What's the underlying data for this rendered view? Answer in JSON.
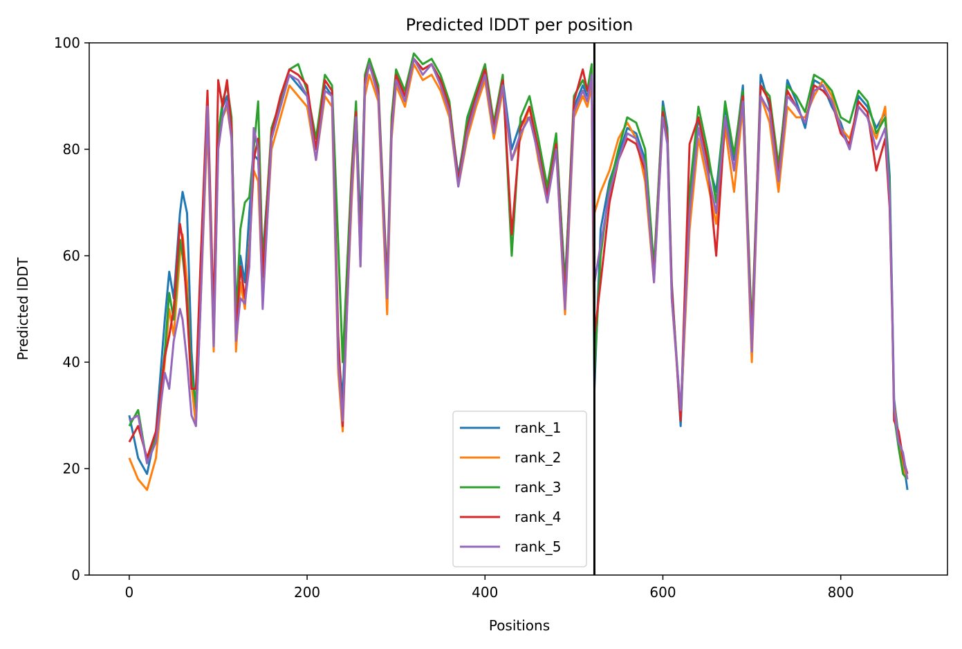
{
  "chart_data": {
    "type": "line",
    "title": "Predicted lDDT per position",
    "xlabel": "Positions",
    "ylabel": "Predicted lDDT",
    "xlim": [
      -45,
      920
    ],
    "ylim": [
      0,
      100
    ],
    "xticks": [
      0,
      200,
      400,
      600,
      800
    ],
    "yticks": [
      0,
      20,
      40,
      60,
      80,
      100
    ],
    "grid": false,
    "legend_position": "lower-center",
    "vline": {
      "x": 523,
      "color": "#000000"
    },
    "series": [
      {
        "name": "rank_1",
        "color": "#1f77b4",
        "x": [
          0,
          10,
          20,
          30,
          40,
          45,
          50,
          57,
          60,
          65,
          70,
          75,
          80,
          88,
          95,
          100,
          105,
          110,
          115,
          120,
          125,
          130,
          135,
          140,
          145,
          150,
          160,
          170,
          180,
          190,
          200,
          210,
          220,
          228,
          235,
          240,
          245,
          250,
          255,
          260,
          265,
          270,
          280,
          290,
          295,
          300,
          310,
          320,
          330,
          340,
          350,
          360,
          370,
          380,
          390,
          400,
          410,
          420,
          430,
          440,
          450,
          460,
          470,
          480,
          490,
          500,
          510,
          515,
          520,
          523,
          530,
          540,
          550,
          560,
          570,
          580,
          590,
          600,
          605,
          610,
          620,
          630,
          640,
          650,
          660,
          670,
          680,
          690,
          700,
          710,
          720,
          730,
          740,
          750,
          760,
          770,
          780,
          790,
          800,
          810,
          820,
          830,
          840,
          850,
          855,
          858,
          860,
          865,
          870,
          875
        ],
        "y": [
          30,
          22,
          19,
          27,
          48,
          57,
          52,
          68,
          72,
          68,
          42,
          30,
          55,
          88,
          45,
          82,
          88,
          90,
          85,
          50,
          60,
          55,
          68,
          79,
          78,
          60,
          82,
          88,
          94,
          92,
          90,
          80,
          92,
          90,
          42,
          33,
          55,
          75,
          88,
          65,
          93,
          96,
          91,
          53,
          85,
          94,
          90,
          97,
          95,
          96,
          93,
          88,
          75,
          85,
          90,
          95,
          84,
          93,
          80,
          85,
          86,
          80,
          72,
          82,
          55,
          88,
          92,
          90,
          93,
          35,
          65,
          74,
          79,
          84,
          83,
          78,
          57,
          89,
          84,
          55,
          28,
          70,
          86,
          78,
          72,
          88,
          78,
          92,
          43,
          94,
          88,
          76,
          93,
          89,
          84,
          93,
          92,
          88,
          85,
          80,
          90,
          88,
          84,
          87,
          75,
          50,
          33,
          26,
          22,
          16
        ]
      },
      {
        "name": "rank_2",
        "color": "#ff7f0e",
        "x": [
          0,
          10,
          20,
          30,
          40,
          45,
          50,
          57,
          60,
          65,
          70,
          75,
          80,
          88,
          95,
          100,
          105,
          110,
          115,
          120,
          125,
          130,
          135,
          140,
          145,
          150,
          160,
          170,
          180,
          190,
          200,
          210,
          220,
          228,
          235,
          240,
          245,
          250,
          255,
          260,
          265,
          270,
          280,
          290,
          295,
          300,
          310,
          320,
          330,
          340,
          350,
          360,
          370,
          380,
          390,
          400,
          410,
          420,
          430,
          440,
          450,
          460,
          470,
          480,
          490,
          500,
          510,
          515,
          520,
          523,
          530,
          540,
          550,
          560,
          570,
          580,
          590,
          600,
          605,
          610,
          620,
          630,
          640,
          650,
          660,
          670,
          680,
          690,
          700,
          710,
          720,
          730,
          740,
          750,
          760,
          770,
          780,
          790,
          800,
          810,
          820,
          830,
          840,
          850,
          855,
          858,
          860,
          865,
          870,
          875
        ],
        "y": [
          22,
          18,
          16,
          22,
          40,
          50,
          45,
          60,
          64,
          55,
          36,
          28,
          50,
          85,
          42,
          80,
          86,
          88,
          82,
          42,
          55,
          50,
          62,
          76,
          74,
          52,
          80,
          86,
          92,
          90,
          88,
          78,
          90,
          88,
          38,
          27,
          50,
          70,
          85,
          58,
          90,
          94,
          89,
          49,
          82,
          92,
          88,
          96,
          93,
          94,
          91,
          86,
          73,
          82,
          88,
          93,
          82,
          91,
          78,
          82,
          88,
          78,
          70,
          80,
          49,
          86,
          90,
          88,
          92,
          68,
          72,
          76,
          82,
          85,
          82,
          74,
          55,
          86,
          82,
          52,
          30,
          65,
          82,
          74,
          66,
          84,
          72,
          88,
          40,
          90,
          85,
          72,
          88,
          86,
          86,
          90,
          93,
          90,
          84,
          82,
          88,
          86,
          82,
          88,
          70,
          48,
          32,
          25,
          20,
          18
        ]
      },
      {
        "name": "rank_3",
        "color": "#2ca02c",
        "x": [
          0,
          10,
          20,
          30,
          40,
          45,
          50,
          57,
          60,
          65,
          70,
          75,
          80,
          88,
          95,
          100,
          105,
          110,
          115,
          120,
          125,
          130,
          135,
          140,
          145,
          150,
          160,
          170,
          180,
          190,
          200,
          210,
          220,
          228,
          235,
          240,
          245,
          250,
          255,
          260,
          265,
          270,
          280,
          290,
          295,
          300,
          310,
          320,
          330,
          340,
          350,
          360,
          370,
          380,
          390,
          400,
          410,
          420,
          430,
          440,
          450,
          460,
          470,
          480,
          490,
          500,
          510,
          515,
          520,
          523,
          530,
          540,
          550,
          560,
          570,
          580,
          590,
          600,
          605,
          610,
          620,
          630,
          640,
          650,
          660,
          670,
          680,
          690,
          700,
          710,
          720,
          730,
          740,
          750,
          760,
          770,
          780,
          790,
          800,
          810,
          820,
          830,
          840,
          850,
          855,
          858,
          860,
          865,
          870,
          875
        ],
        "y": [
          28,
          31,
          21,
          26,
          42,
          53,
          48,
          63,
          60,
          52,
          38,
          32,
          52,
          90,
          44,
          83,
          89,
          92,
          86,
          48,
          65,
          70,
          71,
          80,
          89,
          58,
          84,
          89,
          95,
          96,
          91,
          82,
          94,
          92,
          62,
          40,
          58,
          76,
          89,
          62,
          94,
          97,
          92,
          55,
          86,
          95,
          91,
          98,
          96,
          97,
          94,
          89,
          74,
          86,
          91,
          96,
          85,
          94,
          60,
          86,
          90,
          82,
          73,
          83,
          54,
          90,
          93,
          91,
          96,
          38,
          60,
          73,
          80,
          86,
          85,
          80,
          58,
          88,
          83,
          54,
          30,
          72,
          88,
          80,
          70,
          89,
          79,
          91,
          46,
          92,
          90,
          77,
          92,
          90,
          87,
          94,
          93,
          91,
          86,
          85,
          91,
          89,
          83,
          86,
          73,
          49,
          30,
          24,
          19,
          18
        ]
      },
      {
        "name": "rank_4",
        "color": "#d62728",
        "x": [
          0,
          10,
          20,
          30,
          40,
          45,
          50,
          57,
          60,
          65,
          70,
          75,
          80,
          88,
          95,
          100,
          105,
          110,
          115,
          120,
          125,
          130,
          135,
          140,
          145,
          150,
          160,
          170,
          180,
          190,
          200,
          210,
          220,
          228,
          235,
          240,
          245,
          250,
          255,
          260,
          265,
          270,
          280,
          290,
          295,
          300,
          310,
          320,
          330,
          340,
          350,
          360,
          370,
          380,
          390,
          400,
          410,
          420,
          430,
          440,
          450,
          460,
          470,
          480,
          490,
          500,
          510,
          515,
          520,
          523,
          530,
          540,
          550,
          560,
          570,
          580,
          590,
          600,
          605,
          610,
          620,
          630,
          640,
          650,
          660,
          670,
          680,
          690,
          700,
          710,
          720,
          730,
          740,
          750,
          760,
          770,
          780,
          790,
          800,
          810,
          820,
          830,
          840,
          850,
          855,
          858,
          860,
          865,
          870,
          875
        ],
        "y": [
          25,
          28,
          22,
          27,
          41,
          45,
          50,
          66,
          63,
          50,
          35,
          35,
          58,
          91,
          48,
          93,
          88,
          93,
          84,
          45,
          58,
          52,
          60,
          78,
          82,
          56,
          83,
          90,
          95,
          94,
          92,
          80,
          93,
          91,
          45,
          28,
          52,
          74,
          87,
          60,
          93,
          96,
          91,
          54,
          84,
          94,
          90,
          97,
          95,
          96,
          93,
          88,
          74,
          84,
          90,
          95,
          84,
          93,
          64,
          84,
          88,
          80,
          71,
          81,
          52,
          89,
          95,
          91,
          93,
          45,
          55,
          70,
          78,
          82,
          81,
          76,
          56,
          87,
          82,
          54,
          29,
          81,
          86,
          78,
          60,
          86,
          76,
          90,
          44,
          92,
          89,
          75,
          91,
          88,
          85,
          92,
          91,
          89,
          83,
          81,
          89,
          87,
          76,
          82,
          69,
          48,
          29,
          27,
          22,
          19
        ]
      },
      {
        "name": "rank_5",
        "color": "#9467bd",
        "x": [
          0,
          10,
          20,
          30,
          40,
          45,
          50,
          57,
          60,
          65,
          70,
          75,
          80,
          88,
          95,
          100,
          105,
          110,
          115,
          120,
          125,
          130,
          135,
          140,
          145,
          150,
          160,
          170,
          180,
          190,
          200,
          210,
          220,
          228,
          235,
          240,
          245,
          250,
          255,
          260,
          265,
          270,
          280,
          290,
          295,
          300,
          310,
          320,
          330,
          340,
          350,
          360,
          370,
          380,
          390,
          400,
          410,
          420,
          430,
          440,
          450,
          460,
          470,
          480,
          490,
          500,
          510,
          515,
          520,
          523,
          530,
          540,
          550,
          560,
          570,
          580,
          590,
          600,
          605,
          610,
          620,
          630,
          640,
          650,
          660,
          670,
          680,
          690,
          700,
          710,
          720,
          730,
          740,
          750,
          760,
          770,
          780,
          790,
          800,
          810,
          820,
          830,
          840,
          850,
          855,
          858,
          860,
          865,
          870,
          875
        ],
        "y": [
          29,
          30,
          21,
          25,
          38,
          35,
          44,
          50,
          48,
          40,
          30,
          28,
          50,
          88,
          43,
          80,
          86,
          89,
          82,
          44,
          52,
          51,
          58,
          84,
          80,
          50,
          82,
          88,
          94,
          93,
          90,
          78,
          91,
          90,
          40,
          29,
          50,
          72,
          86,
          58,
          92,
          96,
          90,
          52,
          83,
          93,
          89,
          97,
          94,
          96,
          92,
          87,
          73,
          83,
          89,
          94,
          83,
          92,
          78,
          83,
          86,
          79,
          70,
          80,
          50,
          87,
          91,
          89,
          94,
          55,
          62,
          72,
          78,
          83,
          82,
          77,
          55,
          86,
          81,
          52,
          31,
          68,
          84,
          76,
          68,
          86,
          76,
          89,
          42,
          90,
          87,
          74,
          90,
          88,
          85,
          91,
          92,
          89,
          84,
          80,
          88,
          86,
          80,
          84,
          71,
          49,
          31,
          25,
          23,
          18
        ]
      }
    ]
  }
}
